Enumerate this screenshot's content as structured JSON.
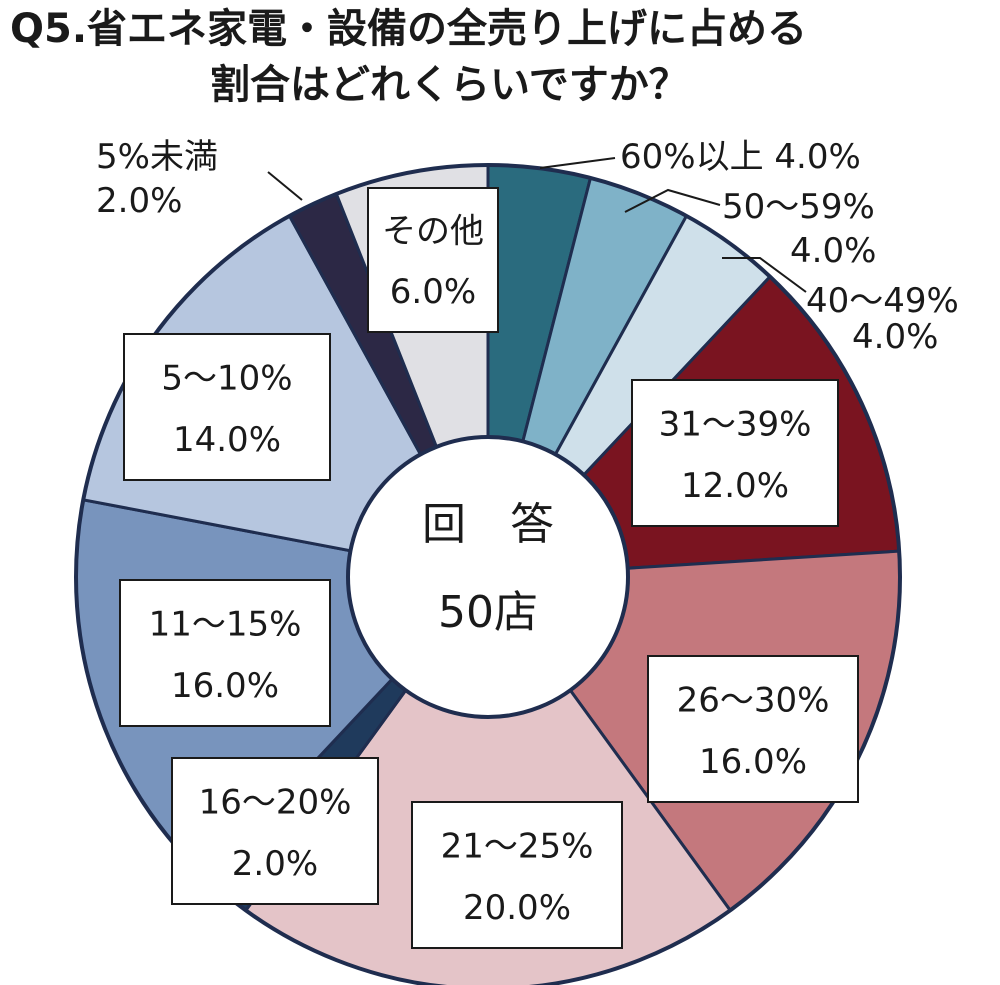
{
  "chart_data": {
    "type": "pie",
    "title_line1": "Q5.省エネ家電・設備の全売り上げに占める",
    "title_line2": "割合はどれくらいですか？",
    "center_line1": "回　答",
    "center_line2": "50店",
    "slices": [
      {
        "category": "60%以上",
        "value": 4.0,
        "value_label": "4.0%",
        "color": "#2a6b7e"
      },
      {
        "category": "50～59%",
        "value": 4.0,
        "value_label": "4.0%",
        "color": "#7fb2c8"
      },
      {
        "category": "40～49%",
        "value": 4.0,
        "value_label": "4.0%",
        "color": "#cfe0ea"
      },
      {
        "category": "31～39%",
        "value": 12.0,
        "value_label": "12.0%",
        "color": "#7a1420"
      },
      {
        "category": "26～30%",
        "value": 16.0,
        "value_label": "16.0%",
        "color": "#c4787d"
      },
      {
        "category": "21～25%",
        "value": 20.0,
        "value_label": "20.0%",
        "color": "#e4c4c8"
      },
      {
        "category": "16～20%",
        "value": 2.0,
        "value_label": "2.0%",
        "color": "#1f3a5c"
      },
      {
        "category": "11～15%",
        "value": 16.0,
        "value_label": "16.0%",
        "color": "#7894bd"
      },
      {
        "category": "5～10%",
        "value": 14.0,
        "value_label": "14.0%",
        "color": "#b6c6df"
      },
      {
        "category": "5%未満",
        "value": 2.0,
        "value_label": "2.0%",
        "color": "#2c2845"
      },
      {
        "category": "その他",
        "value": 6.0,
        "value_label": "6.0%",
        "color": "#e0e0e4"
      }
    ]
  }
}
